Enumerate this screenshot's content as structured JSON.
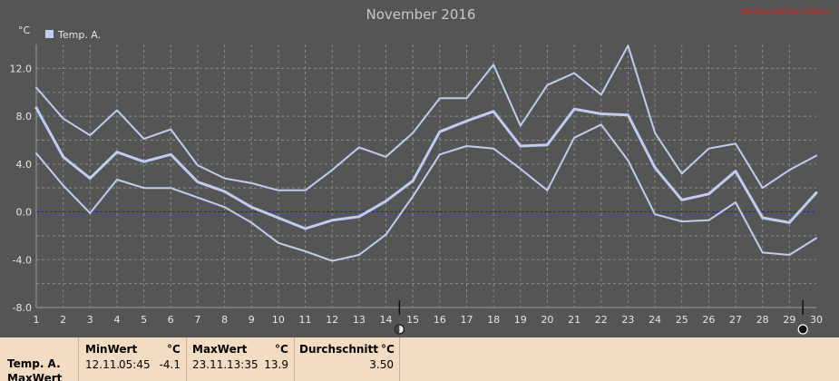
{
  "chart_data": {
    "type": "line",
    "title": "November 2016",
    "note": "Wetterstation Hahn",
    "ylabel": "°C",
    "xlim": [
      1,
      30
    ],
    "ylim": [
      -8,
      14
    ],
    "yticks": [
      "-8.0",
      "-4.0",
      "0.0",
      "4.0",
      "8.0",
      "12.0"
    ],
    "ytick_values": [
      -8,
      -4,
      0,
      4,
      8,
      12
    ],
    "x": [
      1,
      2,
      3,
      4,
      5,
      6,
      7,
      8,
      9,
      10,
      11,
      12,
      13,
      14,
      15,
      16,
      17,
      18,
      19,
      20,
      21,
      22,
      23,
      24,
      25,
      26,
      27,
      28,
      29,
      30
    ],
    "xticks": [
      "1",
      "2",
      "3",
      "4",
      "5",
      "6",
      "7",
      "8",
      "9",
      "10",
      "11",
      "12",
      "13",
      "14",
      "15",
      "16",
      "17",
      "18",
      "19",
      "20",
      "21",
      "22",
      "23",
      "24",
      "25",
      "26",
      "27",
      "28",
      "29",
      "30"
    ],
    "grid": true,
    "legend": "top-left",
    "series": [
      {
        "name": "Temp. A.",
        "role": "max",
        "values": [
          10.4,
          7.8,
          6.4,
          8.5,
          6.1,
          6.9,
          3.9,
          2.8,
          2.4,
          1.8,
          1.8,
          3.5,
          5.4,
          4.6,
          6.6,
          9.5,
          9.5,
          12.3,
          7.2,
          10.6,
          11.6,
          9.8,
          13.9,
          6.6,
          3.2,
          5.3,
          5.7,
          2.0,
          3.5,
          4.7
        ]
      },
      {
        "name": "",
        "role": "avg",
        "values": [
          8.7,
          4.6,
          2.8,
          5.0,
          4.2,
          4.8,
          2.5,
          1.7,
          0.4,
          -0.5,
          -1.4,
          -0.7,
          -0.4,
          0.9,
          2.6,
          6.7,
          7.6,
          8.4,
          5.5,
          5.6,
          8.6,
          8.2,
          8.1,
          3.7,
          1.0,
          1.5,
          3.4,
          -0.5,
          -0.9,
          1.6
        ]
      },
      {
        "name": "",
        "role": "min",
        "values": [
          4.9,
          2.2,
          -0.1,
          2.7,
          2.0,
          2.0,
          1.2,
          0.4,
          -0.9,
          -2.6,
          -3.3,
          -4.1,
          -3.6,
          -1.9,
          1.3,
          4.8,
          5.5,
          5.3,
          3.6,
          1.8,
          6.2,
          7.3,
          4.3,
          -0.2,
          -0.8,
          -0.7,
          0.8,
          -3.4,
          -3.6,
          -2.2
        ]
      }
    ],
    "markers": [
      {
        "x": 14.5,
        "icon": "waxing-moon-icon"
      },
      {
        "x": 29.5,
        "icon": "new-moon-icon"
      }
    ],
    "colors": {
      "series": "#c0ccf0",
      "zero_line": "#2020d0",
      "background": "#555555",
      "note": "#e02020"
    }
  },
  "stats": {
    "row_label": "Temp. A.",
    "next_row_label": "MaxWert",
    "min": {
      "header": "MinWert",
      "unit": "°C",
      "date": "12.11.",
      "time": "05:45",
      "value": "-4.1"
    },
    "max": {
      "header": "MaxWert",
      "unit": "°C",
      "date": "23.11.",
      "time": "13:35",
      "value": "13.9"
    },
    "avg": {
      "header": "Durchschnitt",
      "unit": "°C",
      "value": "3.50"
    }
  }
}
